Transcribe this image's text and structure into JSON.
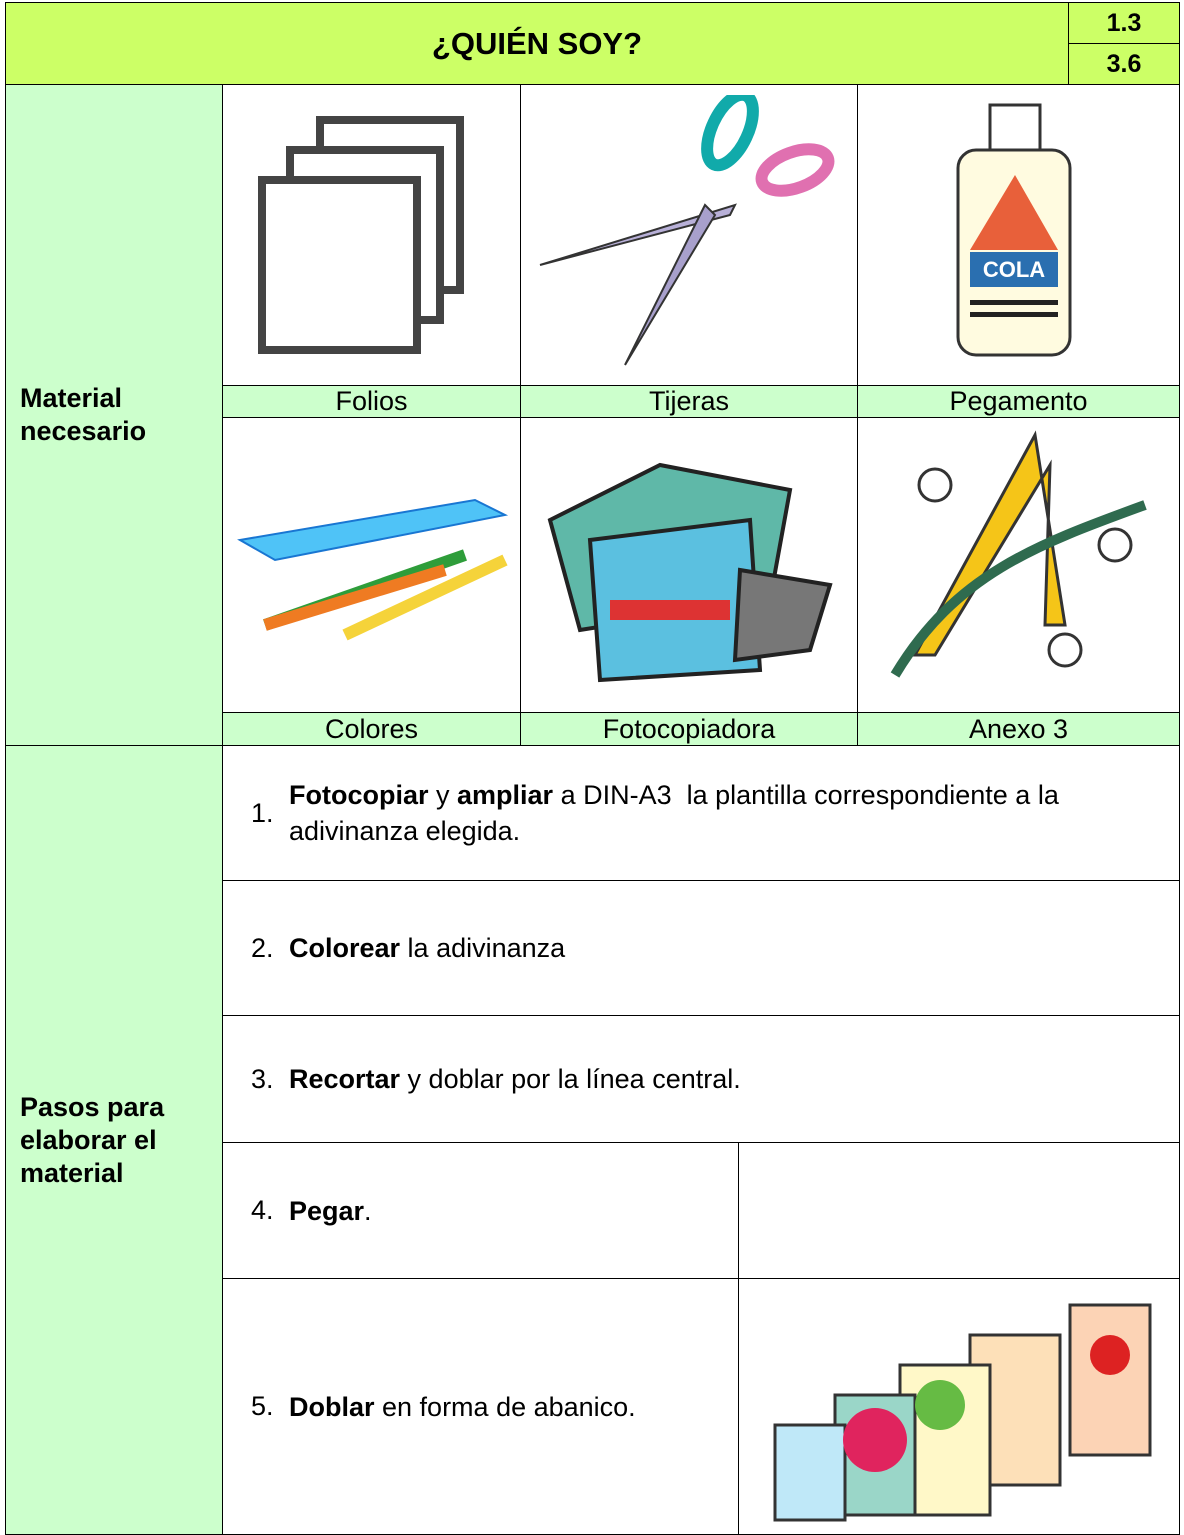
{
  "header": {
    "title": "¿QUIÉN SOY?",
    "codes": [
      "1.3",
      "3.6"
    ]
  },
  "materials": {
    "label": "Material necesario",
    "items": [
      "Folios",
      "Tijeras",
      "Pegamento",
      "Colores",
      "Fotocopiadora",
      "Anexo 3"
    ]
  },
  "steps": {
    "label": "Pasos para elaborar el material",
    "items": [
      {
        "number": "1.",
        "parts": [
          {
            "text": "Fotocopiar",
            "bold": true
          },
          {
            "text": " y ",
            "bold": false
          },
          {
            "text": "ampliar",
            "bold": true
          },
          {
            "text": " a DIN-A3  la plantilla correspondiente a la adivinanza elegida.",
            "bold": false
          }
        ]
      },
      {
        "number": "2.",
        "parts": [
          {
            "text": "Colorear",
            "bold": true
          },
          {
            "text": " la adivinanza",
            "bold": false
          }
        ]
      },
      {
        "number": "3.",
        "parts": [
          {
            "text": "Recortar",
            "bold": true
          },
          {
            "text": " y doblar por la línea central.",
            "bold": false
          }
        ]
      },
      {
        "number": "4.",
        "parts": [
          {
            "text": "Pegar",
            "bold": true
          },
          {
            "text": ".",
            "bold": false
          }
        ]
      },
      {
        "number": "5.",
        "parts": [
          {
            "text": "Doblar",
            "bold": true
          },
          {
            "text": " en forma de abanico.",
            "bold": false
          }
        ]
      }
    ]
  }
}
